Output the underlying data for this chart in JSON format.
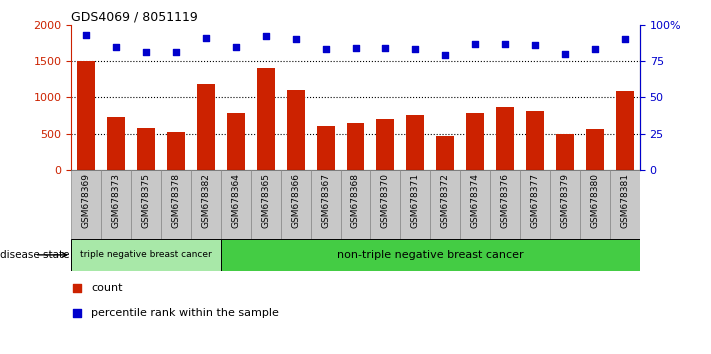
{
  "title": "GDS4069 / 8051119",
  "samples": [
    "GSM678369",
    "GSM678373",
    "GSM678375",
    "GSM678378",
    "GSM678382",
    "GSM678364",
    "GSM678365",
    "GSM678366",
    "GSM678367",
    "GSM678368",
    "GSM678370",
    "GSM678371",
    "GSM678372",
    "GSM678374",
    "GSM678376",
    "GSM678377",
    "GSM678379",
    "GSM678380",
    "GSM678381"
  ],
  "counts": [
    1500,
    730,
    580,
    520,
    1190,
    780,
    1400,
    1100,
    610,
    650,
    700,
    760,
    470,
    780,
    870,
    810,
    500,
    560,
    1090
  ],
  "percentiles": [
    93,
    85,
    81,
    81,
    91,
    85,
    92,
    90,
    83,
    84,
    84,
    83,
    79,
    87,
    87,
    86,
    80,
    83,
    90
  ],
  "triple_neg_count": 5,
  "bar_color": "#cc2200",
  "dot_color": "#0000cc",
  "ylim_left": [
    0,
    2000
  ],
  "ylim_right": [
    0,
    100
  ],
  "yticks_left": [
    0,
    500,
    1000,
    1500,
    2000
  ],
  "yticks_right": [
    0,
    25,
    50,
    75,
    100
  ],
  "grid_values": [
    500,
    1000,
    1500
  ],
  "legend_count_label": "count",
  "legend_percentile_label": "percentile rank within the sample",
  "disease_state_label": "disease state",
  "triple_neg_label": "triple negative breast cancer",
  "non_triple_neg_label": "non-triple negative breast cancer",
  "background_color": "#ffffff",
  "tick_area_color": "#c8c8c8",
  "triple_neg_color": "#a8e8a8",
  "non_triple_neg_color": "#44cc44"
}
